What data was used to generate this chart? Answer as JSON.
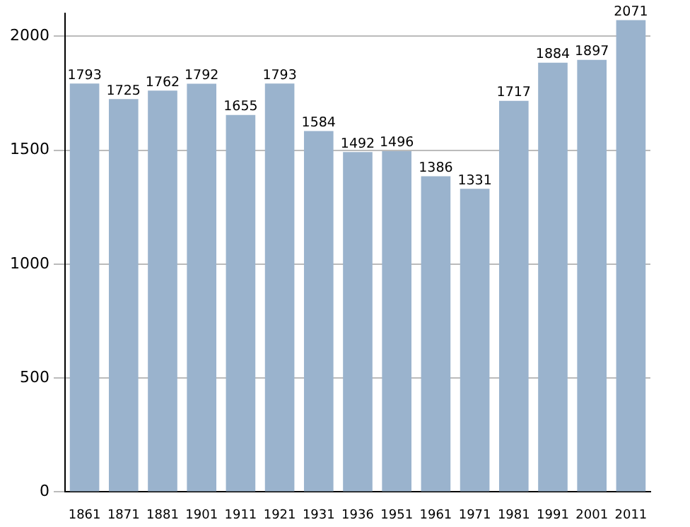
{
  "chart_data": {
    "type": "bar",
    "categories": [
      "1861",
      "1871",
      "1881",
      "1901",
      "1911",
      "1921",
      "1931",
      "1936",
      "1951",
      "1961",
      "1971",
      "1981",
      "1991",
      "2001",
      "2011"
    ],
    "values": [
      1793,
      1725,
      1762,
      1792,
      1655,
      1793,
      1584,
      1492,
      1496,
      1386,
      1331,
      1717,
      1884,
      1897,
      2071
    ],
    "color": "#9ab3cd",
    "ylim": [
      0,
      2100
    ],
    "yticks": [
      0,
      500,
      1000,
      1500,
      2000
    ],
    "grid": "y",
    "data_labels": true
  }
}
